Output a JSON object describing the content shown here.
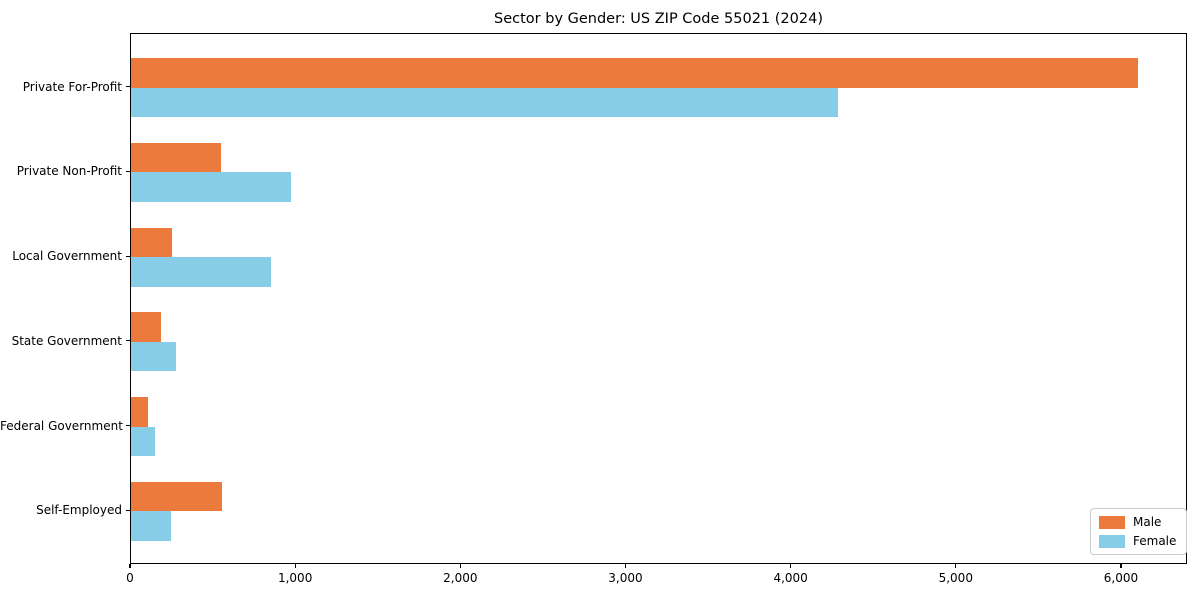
{
  "title": "Sector by Gender: US ZIP Code 55021 (2024)",
  "chart_data": {
    "type": "bar",
    "orientation": "horizontal",
    "title": "Sector by Gender: US ZIP Code 55021 (2024)",
    "categories": [
      "Private For-Profit",
      "Private Non-Profit",
      "Local Government",
      "State Government",
      "Federal Government",
      "Self-Employed"
    ],
    "series": [
      {
        "name": "Male",
        "color": "#EC7A3D",
        "values": [
          6100,
          545,
          250,
          180,
          105,
          550
        ]
      },
      {
        "name": "Female",
        "color": "#87CDE8",
        "values": [
          4280,
          970,
          850,
          275,
          145,
          240
        ]
      }
    ],
    "xlabel": "",
    "ylabel": "",
    "xlim": [
      0,
      6400
    ],
    "xticks": [
      0,
      1000,
      2000,
      3000,
      4000,
      5000,
      6000
    ],
    "xtick_labels": [
      "0",
      "1,000",
      "2,000",
      "3,000",
      "4,000",
      "5,000",
      "6,000"
    ],
    "grid": false,
    "legend": {
      "position": "lower right",
      "entries": [
        "Male",
        "Female"
      ]
    },
    "colors": {
      "male": "#EC7A3D",
      "female": "#87CDE8",
      "spine": "#000000",
      "legend_border": "#cccccc"
    }
  }
}
